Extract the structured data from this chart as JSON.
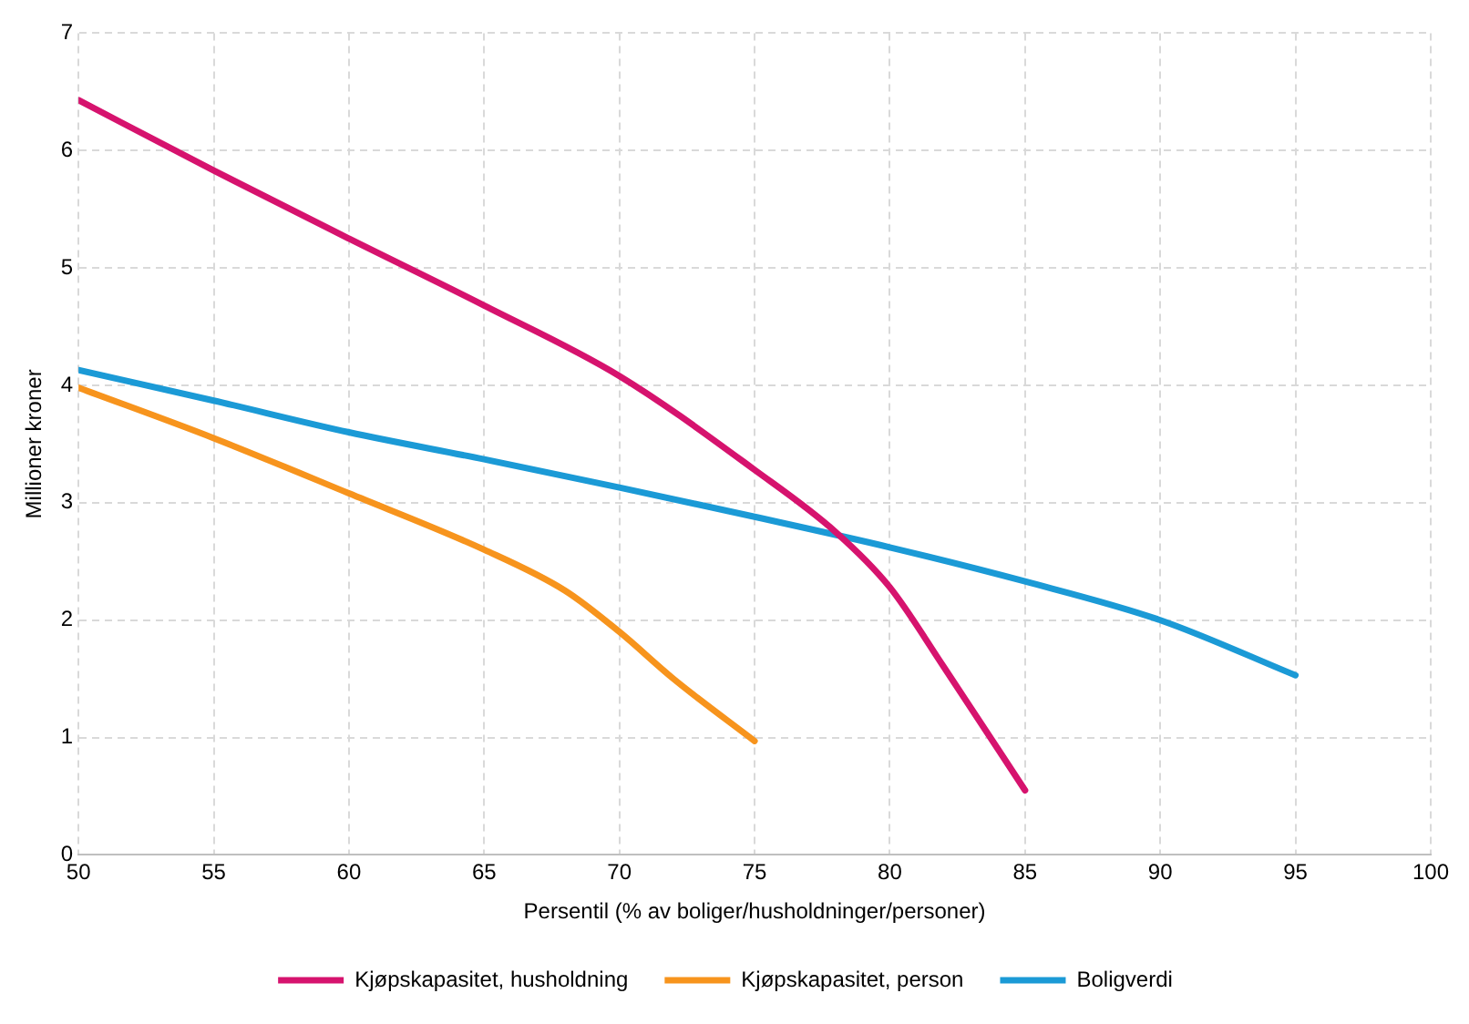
{
  "chart_data": {
    "type": "line",
    "xlabel": "Persentil (% av boliger/husholdninger/personer)",
    "ylabel": "Millioner kroner",
    "xlim": [
      50,
      100
    ],
    "xticks": [
      50,
      55,
      60,
      65,
      70,
      75,
      80,
      85,
      90,
      95,
      100
    ],
    "ylim": [
      0,
      7
    ],
    "yticks": [
      0,
      1,
      2,
      3,
      4,
      5,
      6,
      7
    ],
    "grid": true,
    "legend": "bottom",
    "marker": "none",
    "line_style": "solid",
    "series": [
      {
        "name": "Kjøpskapasitet, husholdning",
        "color": "#d6136e",
        "x": [
          50,
          55,
          60,
          65,
          70,
          75,
          78,
          80,
          82,
          85
        ],
        "values": [
          6.43,
          5.83,
          5.25,
          4.68,
          4.08,
          3.28,
          2.75,
          2.28,
          1.6,
          0.55
        ]
      },
      {
        "name": "Kjøpskapasitet, person",
        "color": "#f7941d",
        "x": [
          50,
          55,
          60,
          65,
          68,
          70,
          72,
          75
        ],
        "values": [
          3.98,
          3.55,
          3.08,
          2.6,
          2.25,
          1.9,
          1.5,
          0.97
        ]
      },
      {
        "name": "Boligverdi",
        "color": "#1b9ad6",
        "x": [
          50,
          55,
          60,
          65,
          70,
          75,
          80,
          85,
          90,
          95
        ],
        "values": [
          4.13,
          3.87,
          3.6,
          3.37,
          3.13,
          2.88,
          2.62,
          2.33,
          2.0,
          1.53
        ]
      }
    ]
  }
}
